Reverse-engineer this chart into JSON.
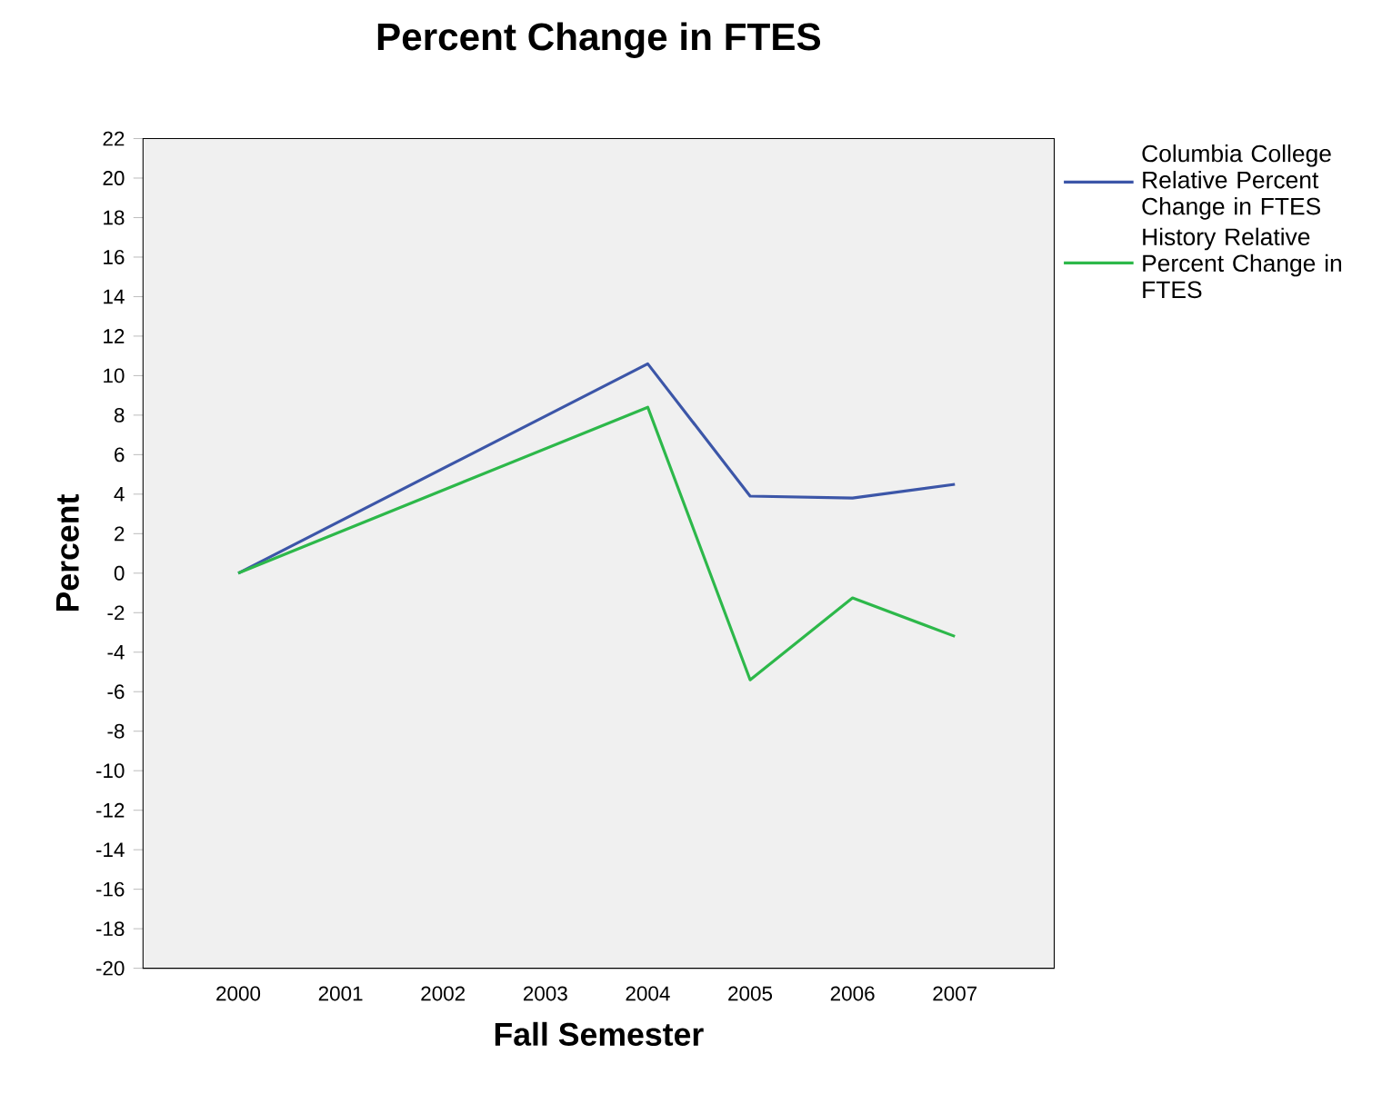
{
  "chart_data": {
    "type": "line",
    "title": "Percent Change in FTES",
    "xlabel": "Fall Semester",
    "ylabel": "Percent",
    "xlim": [
      1999.07,
      2007.97
    ],
    "xticks": [
      2000,
      2001,
      2002,
      2003,
      2004,
      2005,
      2006,
      2007
    ],
    "ylim": [
      -20,
      22
    ],
    "yticks": [
      -20,
      -18,
      -16,
      -14,
      -12,
      -10,
      -8,
      -6,
      -4,
      -2,
      0,
      2,
      4,
      6,
      8,
      10,
      12,
      14,
      16,
      18,
      20,
      22
    ],
    "legend": "top right",
    "marker": "none",
    "line_style": "solid",
    "series": [
      {
        "name": "Columbia College Relative Percent Change in FTES",
        "color": "#3c56a8",
        "x": [
          2000,
          2004,
          2005,
          2006,
          2007
        ],
        "values": [
          0,
          10.6,
          3.9,
          3.8,
          4.5
        ]
      },
      {
        "name": "History Relative Percent Change in FTES",
        "color": "#2db84a",
        "x": [
          2000,
          2004,
          2005,
          2006,
          2007
        ],
        "values": [
          0,
          8.4,
          -5.4,
          -1.25,
          -3.2
        ]
      }
    ]
  }
}
